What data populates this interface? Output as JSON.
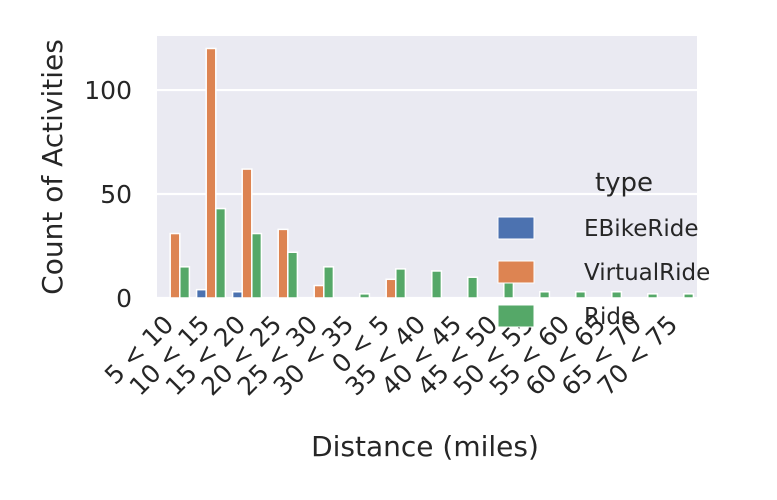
{
  "chart_data": {
    "type": "bar",
    "categories": [
      "5 < 10",
      "10 < 15",
      "15 < 20",
      "20 < 25",
      "25 < 30",
      "30 < 35",
      "0 < 5",
      "35 < 40",
      "40 < 45",
      "45 < 50",
      "50 < 55",
      "55 < 60",
      "60 < 65",
      "65 < 70",
      "70 < 75"
    ],
    "series": [
      {
        "name": "EBikeRide",
        "color": "#4c72b0",
        "values": [
          0,
          4,
          3,
          0,
          0,
          0,
          0,
          0,
          0,
          0,
          0,
          0,
          0,
          0,
          0
        ]
      },
      {
        "name": "VirtualRide",
        "color": "#dd8452",
        "values": [
          31,
          120,
          62,
          33,
          6,
          0,
          9,
          0,
          0,
          0,
          0,
          0,
          0,
          0,
          0
        ]
      },
      {
        "name": "Ride",
        "color": "#55a868",
        "values": [
          15,
          43,
          31,
          22,
          15,
          2,
          14,
          13,
          10,
          8,
          3,
          3,
          3,
          2,
          2
        ]
      }
    ],
    "xlabel": "Distance (miles)",
    "ylabel": "Count of Activities",
    "ylim": [
      0,
      126
    ],
    "yticks": [
      0,
      50,
      100
    ],
    "legend_title": "type",
    "legend_position": "right",
    "grid": true,
    "background": "#eaeaf2"
  }
}
